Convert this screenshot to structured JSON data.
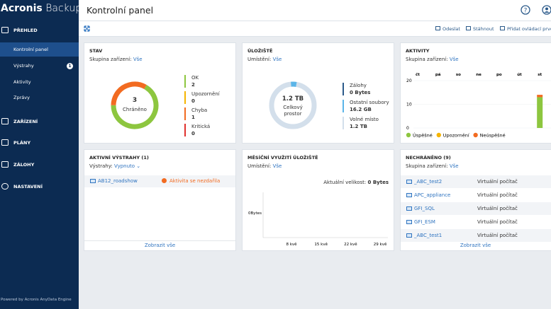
{
  "brand": {
    "name": "Acronis",
    "product": "Backup"
  },
  "nav": {
    "sections": [
      "PŘEHLED",
      "ZAŘÍZENÍ",
      "PLÁNY",
      "ZÁLOHY",
      "NASTAVENÍ"
    ],
    "items": [
      "Kontrolní panel",
      "Výstrahy",
      "Aktivity",
      "Zprávy"
    ],
    "alert_badge": 1,
    "footer": "Powered by Acronis AnyData Engine"
  },
  "header": {
    "title": "Kontrolní panel"
  },
  "toolbar": {
    "actions": [
      "Odeslat",
      "Stáhnout",
      "Přidat ovládací prvek"
    ]
  },
  "status": {
    "title": "STAV",
    "filter_label": "Skupina zařízení:",
    "filter_value": "Vše",
    "total": 3,
    "total_label": "Chráněno",
    "legend": [
      {
        "label": "OK",
        "count": 2,
        "color": "#8dc63f"
      },
      {
        "label": "Upozornění",
        "count": 0,
        "color": "#f5b400"
      },
      {
        "label": "Chyba",
        "count": 1,
        "color": "#f26b21"
      },
      {
        "label": "Kritická",
        "count": 0,
        "color": "#e0312d"
      }
    ]
  },
  "storage": {
    "title": "ÚLOŽIŠTĚ",
    "filter_label": "Umístění:",
    "filter_value": "Vše",
    "total": "1.2 TB",
    "total_label": "Celkový prostor",
    "legend": [
      {
        "label": "Zálohy",
        "value": "0 Bytes",
        "color": "#2b5a8a"
      },
      {
        "label": "Ostatní soubory",
        "value": "16.2 GB",
        "color": "#5bb5e8"
      },
      {
        "label": "Volné místo",
        "value": "1.2 TB",
        "color": "#d3dfeb"
      }
    ]
  },
  "activities": {
    "title": "AKTIVITY",
    "filter_label": "Skupina zařízení:",
    "filter_value": "Vše",
    "days": [
      "čt",
      "pá",
      "so",
      "ne",
      "po",
      "út",
      "st"
    ],
    "ylim": [
      0,
      20
    ],
    "yticks": [
      0,
      10,
      20
    ],
    "series": [
      {
        "name": "Úspěšné",
        "color": "#8dc63f",
        "values": [
          0,
          0,
          0,
          0,
          0,
          0,
          13
        ]
      },
      {
        "name": "Upozornění",
        "color": "#f5b400",
        "values": [
          0,
          0,
          0,
          0,
          0,
          0,
          0
        ]
      },
      {
        "name": "Neúspěšné",
        "color": "#f26b21",
        "values": [
          0,
          0,
          0,
          0,
          0,
          0,
          1
        ]
      }
    ]
  },
  "alerts": {
    "title": "AKTIVNÍ VÝSTRAHY (1)",
    "filter_label": "Výstrahy:",
    "filter_value": "Vypnuto",
    "rows": [
      {
        "device": "AB12_roadshow",
        "message": "Aktivita se nezdařila"
      }
    ],
    "footer": "Zobrazit vše"
  },
  "monthly": {
    "title": "MĚSÍČNÍ VYUŽITÍ ÚLOŽIŠTĚ",
    "filter_label": "Umístění:",
    "filter_value": "Vše",
    "size_label": "Aktuální velikost:",
    "size_value": "0 Bytes",
    "y_label": "0Bytes",
    "x_labels": [
      "8 kvě",
      "15 kvě",
      "22 kvě",
      "29 kvě"
    ]
  },
  "unprotected": {
    "title": "NECHRÁNĚNO (9)",
    "filter_label": "Skupina zařízení:",
    "filter_value": "Vše",
    "rows": [
      {
        "name": "_ABC_test2",
        "type": "Virtuální počítač"
      },
      {
        "name": "APC_appliance",
        "type": "Virtuální počítač"
      },
      {
        "name": "GFI_SQL",
        "type": "Virtuální počítač"
      },
      {
        "name": "GFI_ESM",
        "type": "Virtuální počítač"
      },
      {
        "name": "_ABC_test1",
        "type": "Virtuální počítač"
      }
    ],
    "footer": "Zobrazit vše"
  }
}
